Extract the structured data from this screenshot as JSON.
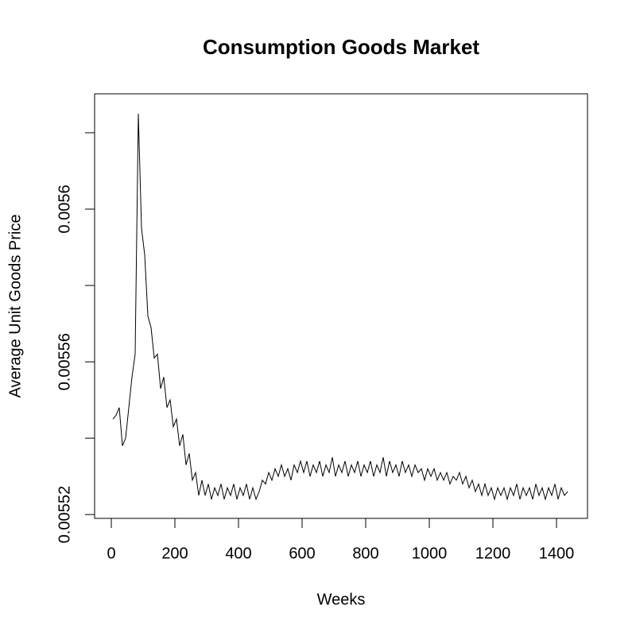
{
  "chart_data": {
    "type": "line",
    "title": "Consumption Goods Market",
    "x_label": "Weeks",
    "y_label": "Average Unit Goods Price",
    "color": "#000000",
    "xlim": [
      -52.5,
      1497.5
    ],
    "xticks": [
      0,
      200,
      400,
      600,
      800,
      1000,
      1200,
      1400
    ],
    "ylim": [
      0.005519,
      0.0056302
    ],
    "yticks": [
      0.00552,
      {
        "value": 0.00554,
        "label": null
      },
      0.00556,
      {
        "value": 0.00558,
        "label": null
      },
      0.0056,
      {
        "value": 0.00562,
        "label": null
      }
    ],
    "x": [
      5,
      15,
      25,
      35,
      45,
      55,
      65,
      75,
      85,
      95,
      105,
      115,
      125,
      135,
      145,
      155,
      165,
      175,
      185,
      195,
      205,
      215,
      225,
      235,
      245,
      255,
      265,
      275,
      285,
      295,
      305,
      315,
      325,
      335,
      345,
      355,
      365,
      375,
      385,
      395,
      405,
      415,
      425,
      435,
      445,
      455,
      465,
      475,
      485,
      495,
      505,
      515,
      525,
      535,
      545,
      555,
      565,
      575,
      585,
      595,
      605,
      615,
      625,
      635,
      645,
      655,
      665,
      675,
      685,
      695,
      705,
      715,
      725,
      735,
      745,
      755,
      765,
      775,
      785,
      795,
      805,
      815,
      825,
      835,
      845,
      855,
      865,
      875,
      885,
      895,
      905,
      915,
      925,
      935,
      945,
      955,
      965,
      975,
      985,
      995,
      1005,
      1015,
      1025,
      1035,
      1045,
      1055,
      1065,
      1075,
      1085,
      1095,
      1105,
      1115,
      1125,
      1135,
      1145,
      1155,
      1165,
      1175,
      1185,
      1195,
      1205,
      1215,
      1225,
      1235,
      1245,
      1255,
      1265,
      1275,
      1285,
      1295,
      1305,
      1315,
      1325,
      1335,
      1345,
      1355,
      1365,
      1375,
      1385,
      1395,
      1405,
      1415,
      1425,
      1435
    ],
    "values": [
      0.005545,
      0.005546,
      0.005548,
      0.005538,
      0.00554,
      0.005548,
      0.005556,
      0.005562,
      0.005625,
      0.005595,
      0.005588,
      0.005572,
      0.005569,
      0.005561,
      0.005562,
      0.005553,
      0.005556,
      0.005548,
      0.00555,
      0.005543,
      0.005545,
      0.005538,
      0.005541,
      0.005533,
      0.005536,
      0.005529,
      0.005531,
      0.005525,
      0.005529,
      0.005525,
      0.005528,
      0.005524,
      0.005527,
      0.005525,
      0.005528,
      0.005524,
      0.005527,
      0.005525,
      0.005528,
      0.005524,
      0.005527,
      0.005525,
      0.005528,
      0.005524,
      0.005527,
      0.005524,
      0.005526,
      0.005529,
      0.005528,
      0.005531,
      0.005529,
      0.005532,
      0.00553,
      0.005533,
      0.00553,
      0.005532,
      0.005529,
      0.005533,
      0.005531,
      0.005534,
      0.005531,
      0.005534,
      0.00553,
      0.005533,
      0.005531,
      0.005534,
      0.00553,
      0.005533,
      0.005531,
      0.005535,
      0.00553,
      0.005533,
      0.005531,
      0.005534,
      0.00553,
      0.005533,
      0.005531,
      0.005534,
      0.00553,
      0.005533,
      0.005531,
      0.005534,
      0.00553,
      0.005533,
      0.005531,
      0.005535,
      0.00553,
      0.005534,
      0.005531,
      0.005533,
      0.00553,
      0.005534,
      0.005531,
      0.005533,
      0.00553,
      0.005533,
      0.005531,
      0.005532,
      0.005529,
      0.005532,
      0.00553,
      0.005532,
      0.005529,
      0.005531,
      0.005529,
      0.005531,
      0.005528,
      0.00553,
      0.005529,
      0.005531,
      0.005528,
      0.00553,
      0.005527,
      0.005529,
      0.005526,
      0.005528,
      0.005525,
      0.005528,
      0.005525,
      0.005527,
      0.005524,
      0.005527,
      0.005525,
      0.005527,
      0.005524,
      0.005527,
      0.005525,
      0.005528,
      0.005524,
      0.005527,
      0.005525,
      0.005527,
      0.005524,
      0.005528,
      0.005525,
      0.005527,
      0.005524,
      0.005527,
      0.005525,
      0.005528,
      0.005524,
      0.005527,
      0.005525,
      0.005526
    ]
  }
}
